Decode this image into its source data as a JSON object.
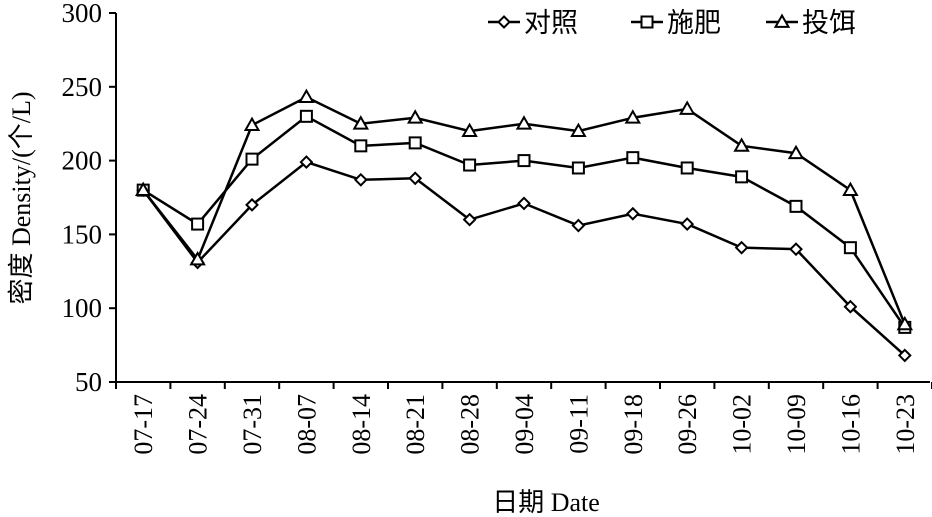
{
  "chart_data": {
    "type": "line",
    "xlabel": "日期 Date",
    "ylabel": "密度 Density/(个/L)",
    "ylim": [
      50,
      300
    ],
    "yticks": [
      50,
      100,
      150,
      200,
      250,
      300
    ],
    "grid": false,
    "legend_position": "top-right",
    "categories": [
      "07-17",
      "07-24",
      "07-31",
      "08-07",
      "08-14",
      "08-21",
      "08-28",
      "09-04",
      "09-11",
      "09-18",
      "09-26",
      "10-02",
      "10-09",
      "10-16",
      "10-23"
    ],
    "series": [
      {
        "name": "对照",
        "marker": "diamond",
        "values": [
          180,
          131,
          170,
          199,
          187,
          188,
          160,
          171,
          156,
          164,
          157,
          141,
          140,
          101,
          68
        ]
      },
      {
        "name": "施肥",
        "marker": "square",
        "values": [
          180,
          157,
          201,
          230,
          210,
          212,
          197,
          200,
          195,
          202,
          195,
          189,
          169,
          141,
          87
        ]
      },
      {
        "name": "投饵",
        "marker": "triangle",
        "values": [
          180,
          133,
          224,
          243,
          225,
          229,
          220,
          225,
          220,
          229,
          235,
          210,
          205,
          180,
          89
        ]
      }
    ]
  }
}
